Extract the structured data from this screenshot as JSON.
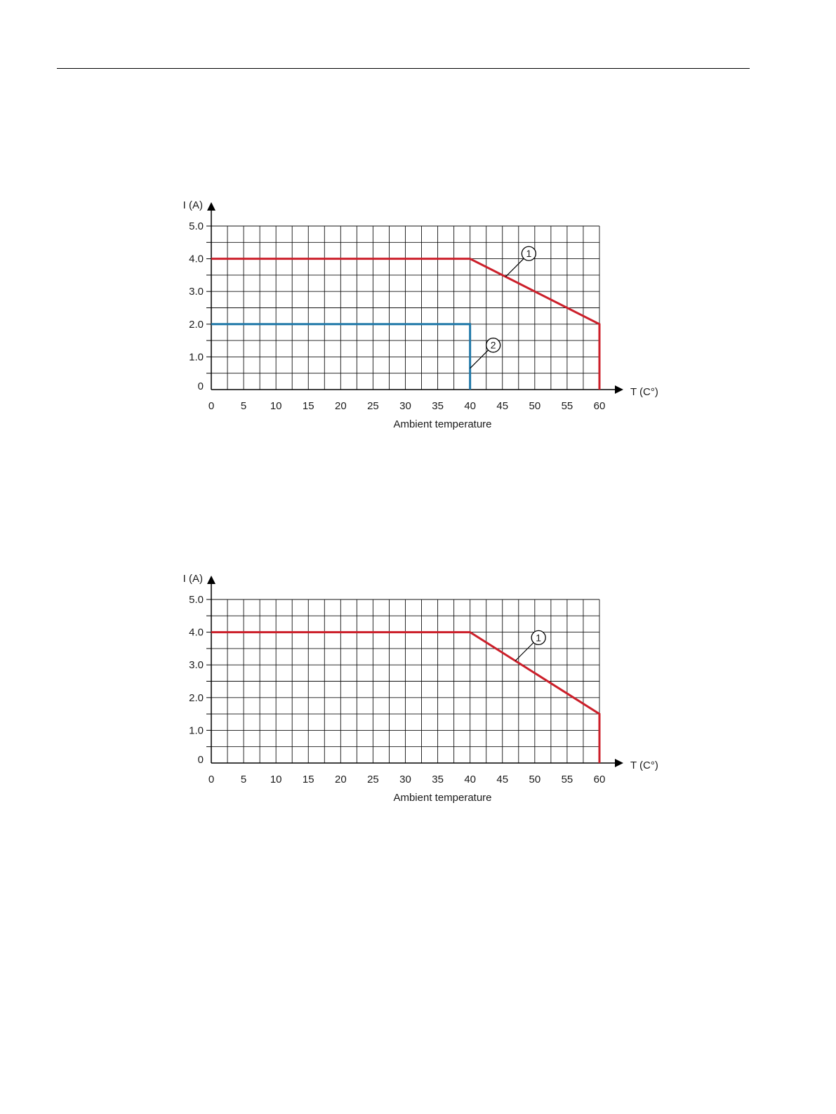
{
  "colors": {
    "grid": "#111111",
    "curve_1": "#cc1f2a",
    "curve_2": "#1f78a8",
    "axis": "#000000"
  },
  "chart_data": [
    {
      "type": "line",
      "xlabel": "Ambient temperature",
      "x_axis_unit": "T (C°)",
      "y_axis_unit": "I (A)",
      "xlim": [
        0,
        60
      ],
      "ylim": [
        0,
        5
      ],
      "x_ticks": [
        "0",
        "5",
        "10",
        "15",
        "20",
        "25",
        "30",
        "35",
        "40",
        "45",
        "50",
        "55",
        "60"
      ],
      "y_ticks": [
        "0",
        "1.0",
        "2.0",
        "3.0",
        "4.0",
        "5.0"
      ],
      "grid": true,
      "series": [
        {
          "marker": "1",
          "color": "#cc1f2a",
          "points": [
            [
              0,
              4.0
            ],
            [
              40,
              4.0
            ],
            [
              60,
              2.0
            ],
            [
              60,
              0
            ]
          ],
          "callout_at": 45.5
        },
        {
          "marker": "2",
          "color": "#1f78a8",
          "points": [
            [
              0,
              2.0
            ],
            [
              40,
              2.0
            ],
            [
              40,
              0
            ]
          ],
          "callout_at": 0.65
        }
      ]
    },
    {
      "type": "line",
      "xlabel": "Ambient temperature",
      "x_axis_unit": "T (C°)",
      "y_axis_unit": "I (A)",
      "xlim": [
        0,
        60
      ],
      "ylim": [
        0,
        5
      ],
      "x_ticks": [
        "0",
        "5",
        "10",
        "15",
        "20",
        "25",
        "30",
        "35",
        "40",
        "45",
        "50",
        "55",
        "60"
      ],
      "y_ticks": [
        "0",
        "1.0",
        "2.0",
        "3.0",
        "4.0",
        "5.0"
      ],
      "grid": true,
      "series": [
        {
          "marker": "1",
          "color": "#cc1f2a",
          "points": [
            [
              0,
              4.0
            ],
            [
              40,
              4.0
            ],
            [
              60,
              1.5
            ],
            [
              60,
              0
            ]
          ],
          "callout_at": 47
        }
      ]
    }
  ]
}
